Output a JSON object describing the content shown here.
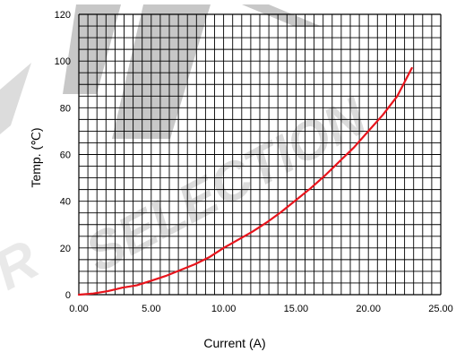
{
  "chart_data": {
    "type": "line",
    "xlabel": "Current (A)",
    "ylabel": "Temp. (℃)",
    "xlim": [
      0,
      25
    ],
    "ylim": [
      0,
      120
    ],
    "x_tick_labels": [
      "0.00",
      "5.00",
      "10.00",
      "15.00",
      "20.00",
      "25.00"
    ],
    "y_tick_labels": [
      "0",
      "20",
      "40",
      "60",
      "80",
      "100",
      "120"
    ],
    "grid": true,
    "series": [
      {
        "color": "#e8141c",
        "x": [
          0,
          1,
          2,
          3,
          4,
          5,
          6,
          7,
          8,
          9,
          10,
          11,
          12,
          13,
          14,
          15,
          16,
          17,
          18,
          19,
          20,
          21,
          22,
          23
        ],
        "y": [
          0,
          0.5,
          1.5,
          3,
          4,
          6,
          8,
          10.5,
          13,
          16,
          20,
          23.5,
          27,
          31,
          35.5,
          40.5,
          45.5,
          51,
          57,
          63,
          70,
          77,
          85,
          97
        ]
      }
    ]
  },
  "watermark": {
    "text": "SELECTION",
    "color": "#b0b0b0"
  }
}
